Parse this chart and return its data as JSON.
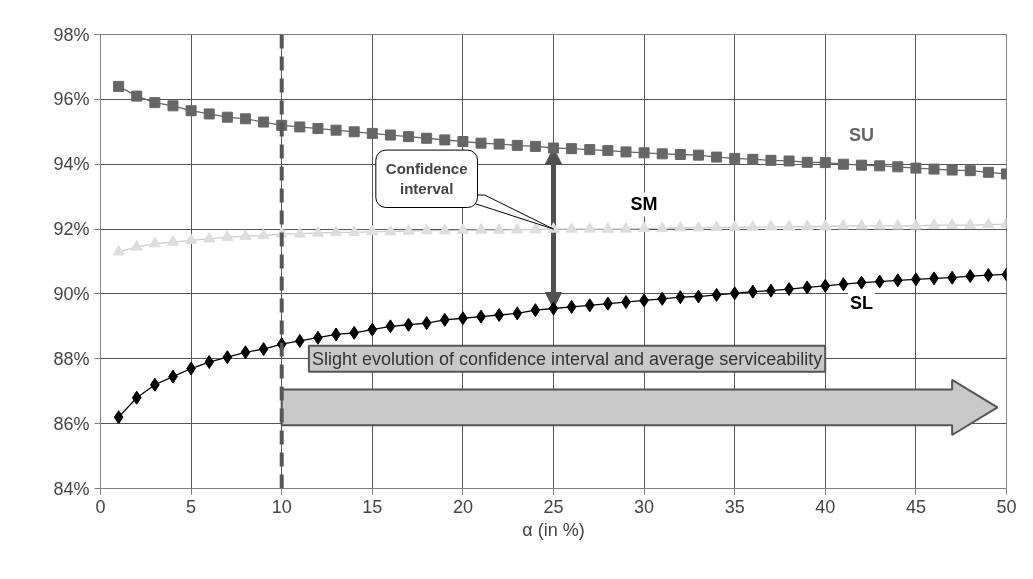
{
  "chart_data": {
    "type": "line",
    "xlabel": "α (in %)",
    "x": [
      1,
      2,
      3,
      4,
      5,
      6,
      7,
      8,
      9,
      10,
      11,
      12,
      13,
      14,
      15,
      16,
      17,
      18,
      19,
      20,
      21,
      22,
      23,
      24,
      25,
      26,
      27,
      28,
      29,
      30,
      31,
      32,
      33,
      34,
      35,
      36,
      37,
      38,
      39,
      40,
      41,
      42,
      43,
      44,
      45,
      46,
      47,
      48,
      49,
      50
    ],
    "series": [
      {
        "name": "SU",
        "color": "#666666",
        "marker": "square",
        "values": [
          96.4,
          96.1,
          95.9,
          95.8,
          95.65,
          95.55,
          95.45,
          95.4,
          95.3,
          95.2,
          95.15,
          95.1,
          95.05,
          95.0,
          94.95,
          94.9,
          94.85,
          94.8,
          94.75,
          94.7,
          94.65,
          94.62,
          94.58,
          94.55,
          94.5,
          94.48,
          94.45,
          94.42,
          94.38,
          94.35,
          94.32,
          94.3,
          94.28,
          94.22,
          94.18,
          94.15,
          94.12,
          94.1,
          94.06,
          94.05,
          94.0,
          93.97,
          93.95,
          93.92,
          93.88,
          93.85,
          93.82,
          93.8,
          93.75,
          93.7
        ]
      },
      {
        "name": "SM",
        "color": "#dddddd",
        "marker": "triangle",
        "values": [
          91.3,
          91.45,
          91.55,
          91.6,
          91.65,
          91.7,
          91.75,
          91.78,
          91.8,
          91.85,
          91.85,
          91.88,
          91.9,
          91.9,
          91.92,
          91.92,
          91.94,
          91.95,
          91.95,
          91.96,
          91.97,
          91.97,
          91.98,
          91.98,
          92.0,
          92.0,
          92.0,
          92.0,
          92.0,
          92.02,
          92.02,
          92.04,
          92.04,
          92.05,
          92.05,
          92.06,
          92.07,
          92.07,
          92.08,
          92.08,
          92.1,
          92.1,
          92.1,
          92.1,
          92.1,
          92.12,
          92.12,
          92.12,
          92.14,
          92.15
        ]
      },
      {
        "name": "SL",
        "color": "#000000",
        "marker": "diamond",
        "values": [
          86.2,
          86.8,
          87.2,
          87.45,
          87.7,
          87.9,
          88.05,
          88.2,
          88.3,
          88.45,
          88.55,
          88.65,
          88.75,
          88.8,
          88.9,
          89.0,
          89.05,
          89.1,
          89.2,
          89.25,
          89.3,
          89.35,
          89.4,
          89.5,
          89.55,
          89.6,
          89.65,
          89.7,
          89.75,
          89.8,
          89.85,
          89.9,
          89.92,
          89.97,
          90.02,
          90.07,
          90.1,
          90.15,
          90.2,
          90.25,
          90.3,
          90.35,
          90.38,
          90.42,
          90.45,
          90.48,
          90.5,
          90.55,
          90.58,
          90.6
        ]
      }
    ],
    "xlim": [
      0,
      50
    ],
    "xticks": [
      0,
      5,
      10,
      15,
      20,
      25,
      30,
      35,
      40,
      45,
      50
    ],
    "ylim": [
      84,
      98
    ],
    "yticks": [
      {
        "value": 84,
        "label": "84%"
      },
      {
        "value": 86,
        "label": "86%"
      },
      {
        "value": 88,
        "label": "88%"
      },
      {
        "value": 90,
        "label": "90%"
      },
      {
        "value": 92,
        "label": "92%"
      },
      {
        "value": 94,
        "label": "94%"
      },
      {
        "value": 96,
        "label": "96%"
      },
      {
        "value": 98,
        "label": "98%"
      }
    ],
    "grid": true,
    "line_style": "solid",
    "ref_lines": [
      {
        "axis": "x",
        "value": 10,
        "color": "#555555",
        "line_style": "dashed"
      }
    ],
    "annotations": [
      {
        "text": "Confidence interval",
        "x": 25,
        "y": 92
      },
      "Slight evolution of confidence interval and average serviceability"
    ]
  }
}
